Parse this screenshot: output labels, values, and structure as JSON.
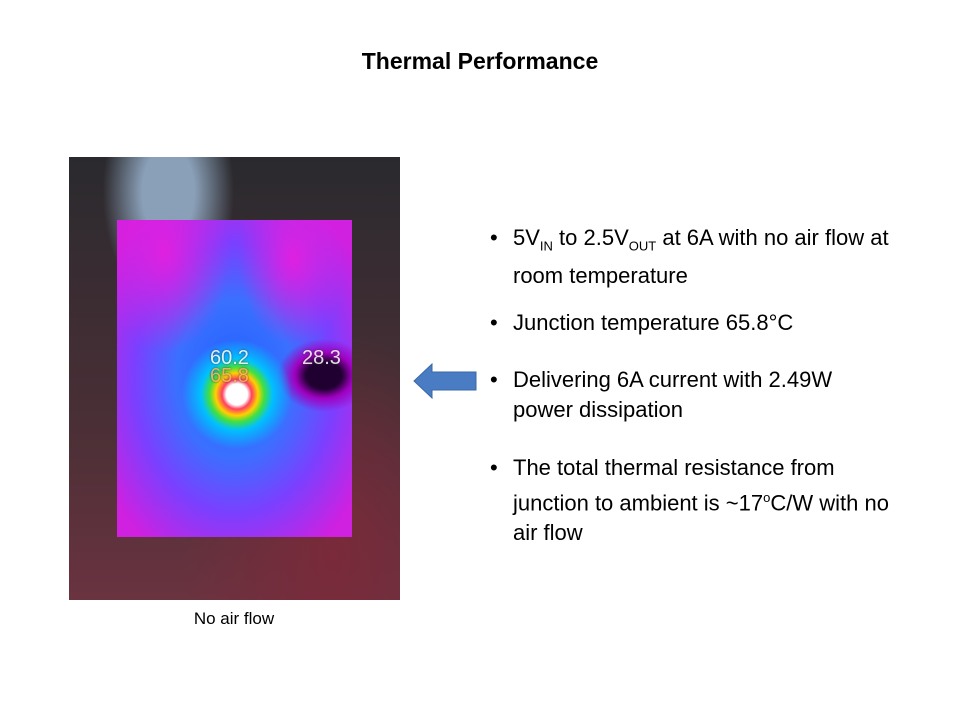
{
  "header": {
    "title": "Thermal Performance"
  },
  "image": {
    "labels": [
      "60.2",
      "65.8",
      "28.3"
    ],
    "caption": "No air flow"
  },
  "bullets": [
    {
      "parts": [
        {
          "text": "5V"
        },
        {
          "text": "IN",
          "sub": true
        },
        {
          "text": " to 2.5V"
        },
        {
          "text": "OUT",
          "sub": true
        },
        {
          "text": " at 6A with no air flow at room temperature"
        }
      ]
    },
    {
      "parts": [
        {
          "text": "Junction temperature 65.8°C"
        }
      ]
    },
    {
      "parts": [
        {
          "text": "Delivering 6A current with 2.49W power dissipation"
        }
      ]
    },
    {
      "parts": [
        {
          "text": "The total thermal resistance from junction to ambient is ~17"
        },
        {
          "text": "o",
          "sup": true
        },
        {
          "text": "C/W with no air flow"
        }
      ]
    }
  ]
}
